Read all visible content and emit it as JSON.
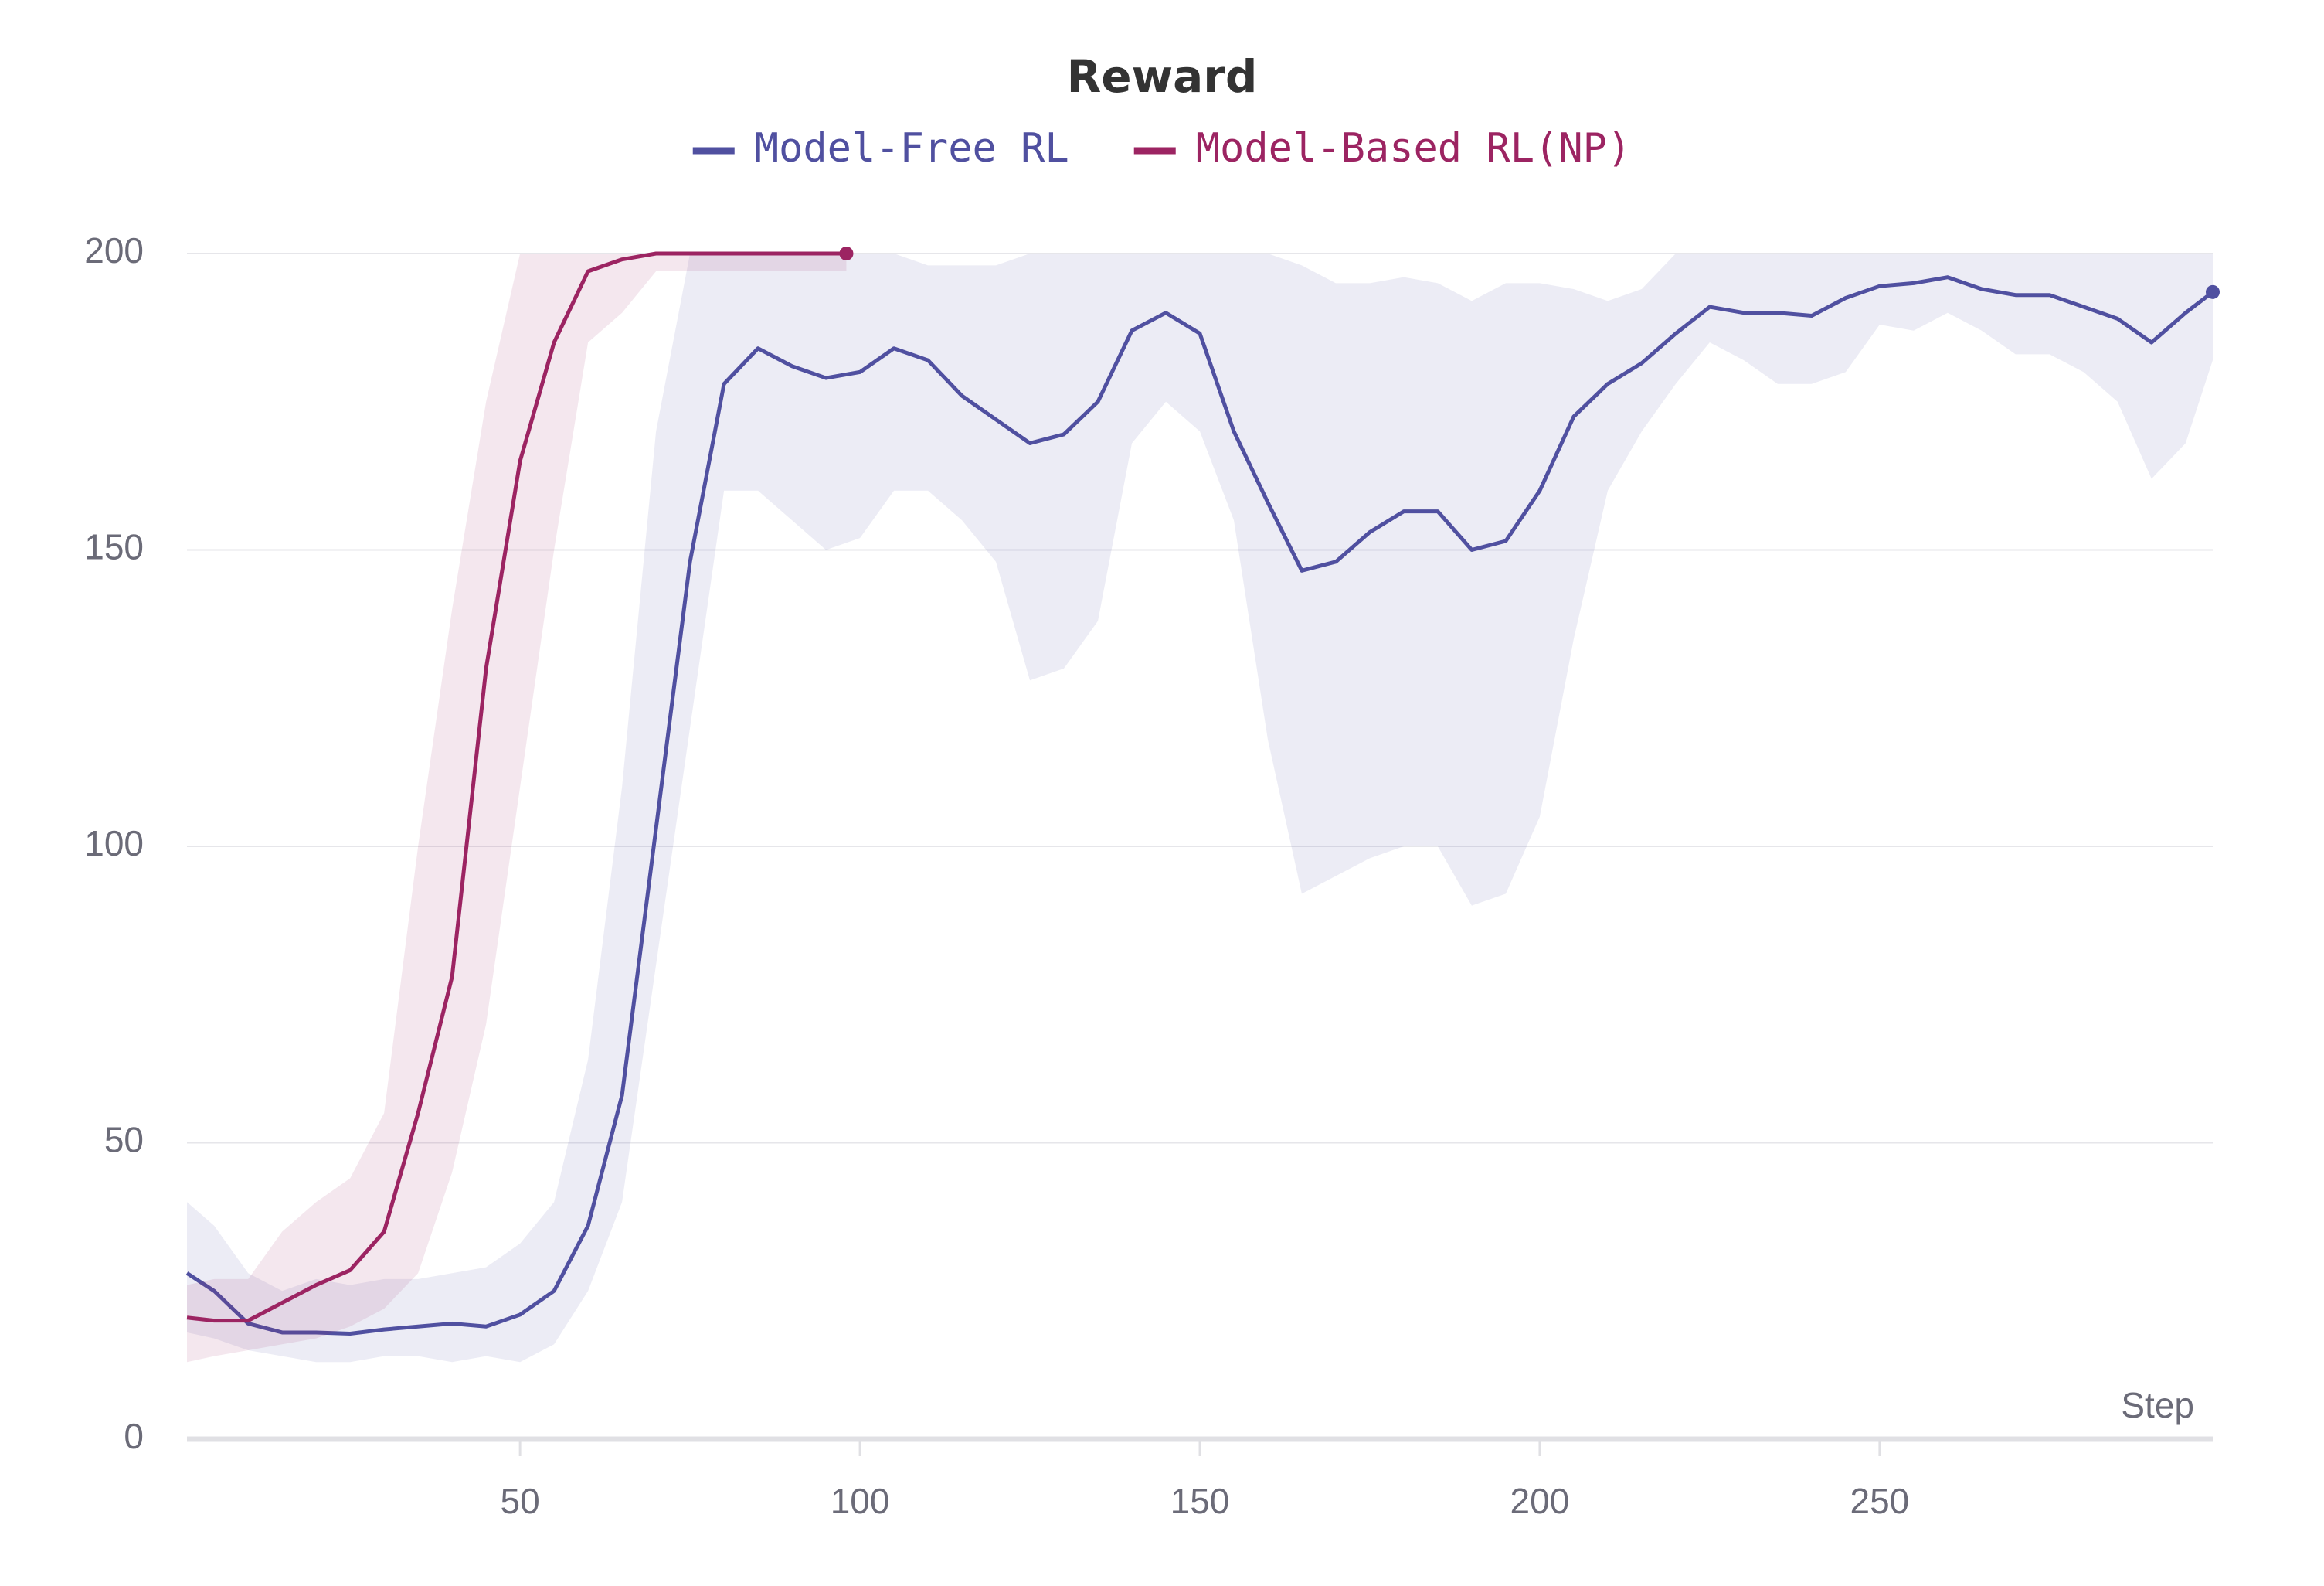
{
  "chart_data": {
    "type": "line",
    "title": "Reward",
    "x_label": "Step",
    "xlim": [
      1,
      299
    ],
    "xticks": [
      50,
      100,
      150,
      200,
      250
    ],
    "ylim": [
      0,
      200
    ],
    "yticks": [
      0,
      50,
      100,
      150,
      200
    ],
    "grid": true,
    "legend": "top",
    "series": [
      {
        "name": "Model-Free RL",
        "color": "#5050a0",
        "x": [
          1,
          5,
          10,
          15,
          20,
          25,
          30,
          35,
          40,
          45,
          50,
          55,
          60,
          65,
          70,
          75,
          80,
          85,
          90,
          95,
          100,
          105,
          110,
          115,
          120,
          125,
          130,
          135,
          140,
          145,
          150,
          155,
          160,
          165,
          170,
          175,
          180,
          185,
          190,
          195,
          200,
          205,
          210,
          215,
          220,
          225,
          230,
          235,
          240,
          245,
          250,
          255,
          260,
          265,
          270,
          275,
          280,
          285,
          290,
          295,
          299
        ],
        "values": [
          28,
          25,
          19.5,
          18,
          18,
          17.8,
          18.5,
          19,
          19.5,
          19,
          21,
          25,
          36,
          58,
          103,
          148,
          178,
          184,
          181,
          179,
          180,
          184,
          182,
          176,
          172,
          168,
          169.5,
          175,
          187,
          190,
          186.5,
          170,
          158,
          146.5,
          148,
          153,
          156.5,
          156.5,
          150,
          151.5,
          160,
          172.5,
          178,
          181.5,
          186.5,
          191,
          190,
          190,
          189.5,
          192.5,
          194.5,
          195,
          196,
          194,
          193,
          193,
          191,
          189,
          185,
          190,
          193.5
        ],
        "lower": [
          18,
          17,
          15,
          14,
          13,
          13,
          14,
          14,
          13,
          14,
          13,
          16,
          25,
          40,
          80,
          120,
          160,
          160,
          155,
          150,
          152,
          160,
          160,
          155,
          148,
          128,
          130,
          138,
          168,
          175,
          170,
          155,
          118,
          92,
          95,
          98,
          100,
          100,
          90,
          92,
          105,
          135,
          160,
          170,
          178,
          185,
          182,
          178,
          178,
          180,
          188,
          187,
          190,
          187,
          183,
          183,
          180,
          175,
          162,
          168,
          182
        ],
        "upper": [
          40,
          36,
          28,
          25,
          27,
          26,
          27,
          27,
          28,
          29,
          33,
          40,
          64,
          110,
          170,
          200,
          200,
          200,
          200,
          200,
          200,
          200,
          198,
          198,
          198,
          200,
          200,
          200,
          200,
          200,
          200,
          200,
          200,
          198,
          195,
          195,
          196,
          195,
          192,
          195,
          195,
          194,
          192,
          194,
          200,
          200,
          200,
          200,
          200,
          200,
          200,
          200,
          200,
          200,
          200,
          200,
          200,
          200,
          200,
          200,
          200
        ]
      },
      {
        "name": "Model-Based RL(NP)",
        "color": "#9c2462",
        "x": [
          1,
          5,
          10,
          15,
          20,
          25,
          30,
          35,
          40,
          45,
          50,
          55,
          60,
          65,
          70,
          75,
          80,
          85,
          90,
          95,
          98
        ],
        "values": [
          20.5,
          20,
          20,
          23,
          26,
          28.5,
          35,
          55,
          78,
          130,
          165,
          185,
          197,
          199,
          200,
          200,
          200,
          200,
          200,
          200,
          200
        ],
        "lower": [
          13,
          14,
          15,
          16,
          17,
          19,
          22,
          28,
          45,
          70,
          110,
          150,
          185,
          190,
          197,
          197,
          197,
          197,
          197,
          197,
          197
        ],
        "upper": [
          26,
          27,
          27,
          35,
          40,
          44,
          55,
          100,
          140,
          175,
          200,
          200,
          200,
          200,
          200,
          200,
          200,
          200,
          200,
          200,
          200
        ]
      }
    ]
  }
}
